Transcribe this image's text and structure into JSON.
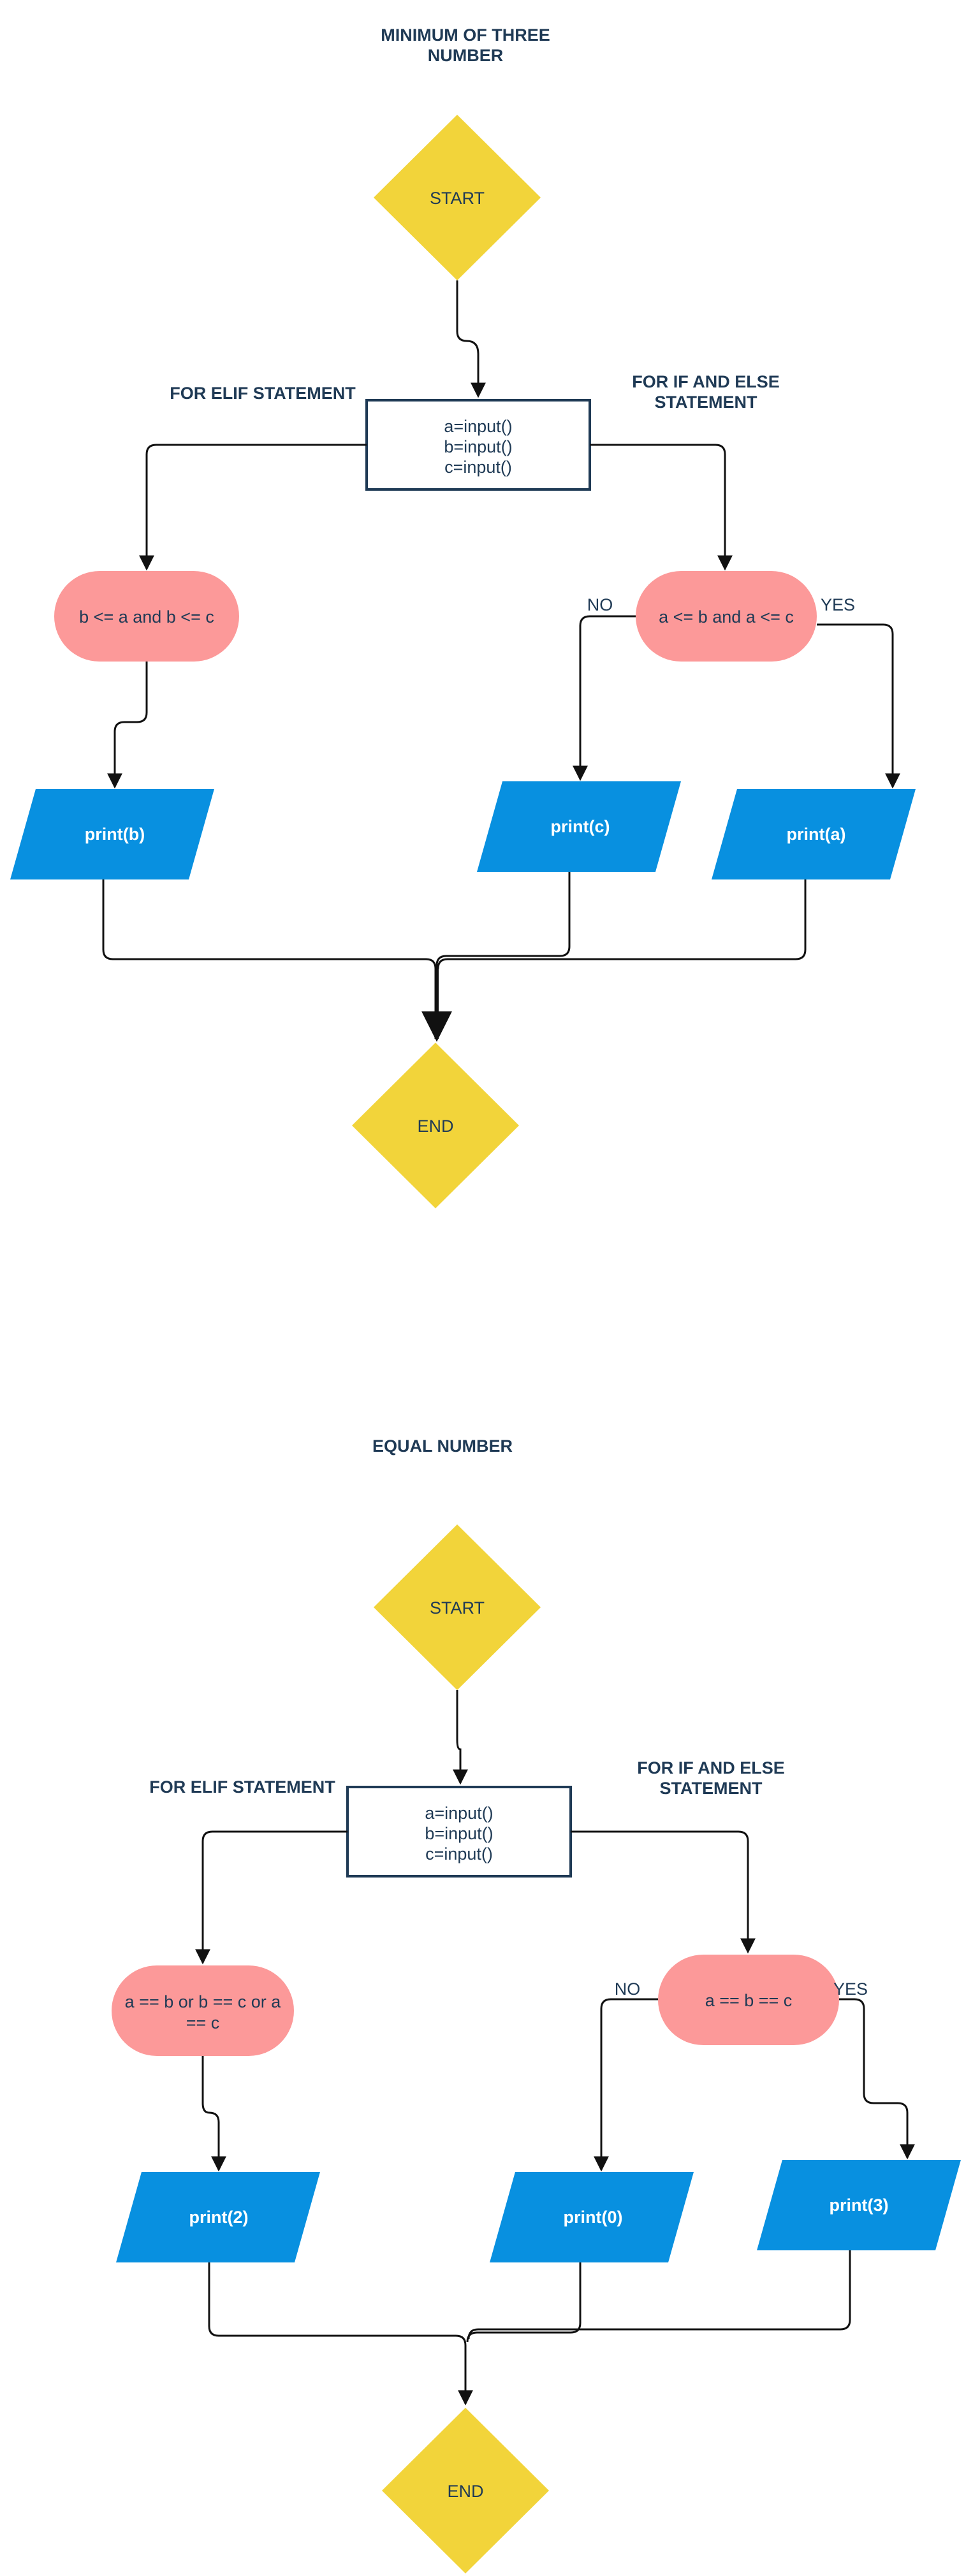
{
  "colors": {
    "terminal": "#f2d43a",
    "decision": "#fc9999",
    "io": "#0890e0",
    "process_border": "#1f3a55",
    "text": "#1f3a55"
  },
  "diagram1": {
    "title_line1": "MINIMUM OF THREE",
    "title_line2": "NUMBER",
    "start": "START",
    "elif_label": "FOR ELIF STATEMENT",
    "ifelse_line1": "FOR IF AND ELSE",
    "ifelse_line2": "STATEMENT",
    "input_lines": [
      "a=input()",
      "b=input()",
      "c=input()"
    ],
    "decision_left": "b <= a and b <= c",
    "decision_right": "a <= b and a <= c",
    "no_label": "NO",
    "yes_label": "YES",
    "print_left": "print(b)",
    "print_mid": "print(c)",
    "print_right": "print(a)",
    "end": "END"
  },
  "diagram2": {
    "title": "EQUAL NUMBER",
    "start": "START",
    "elif_label": "FOR ELIF STATEMENT",
    "ifelse_line1": "FOR IF AND ELSE",
    "ifelse_line2": "STATEMENT",
    "input_lines": [
      "a=input()",
      "b=input()",
      "c=input()"
    ],
    "decision_left_line1": "a == b or b == c or a",
    "decision_left_line2": "== c",
    "decision_right": "a == b == c",
    "no_label": "NO",
    "yes_label": "YES",
    "print_left": "print(2)",
    "print_mid": "print(0)",
    "print_right": "print(3)",
    "end": "END"
  }
}
